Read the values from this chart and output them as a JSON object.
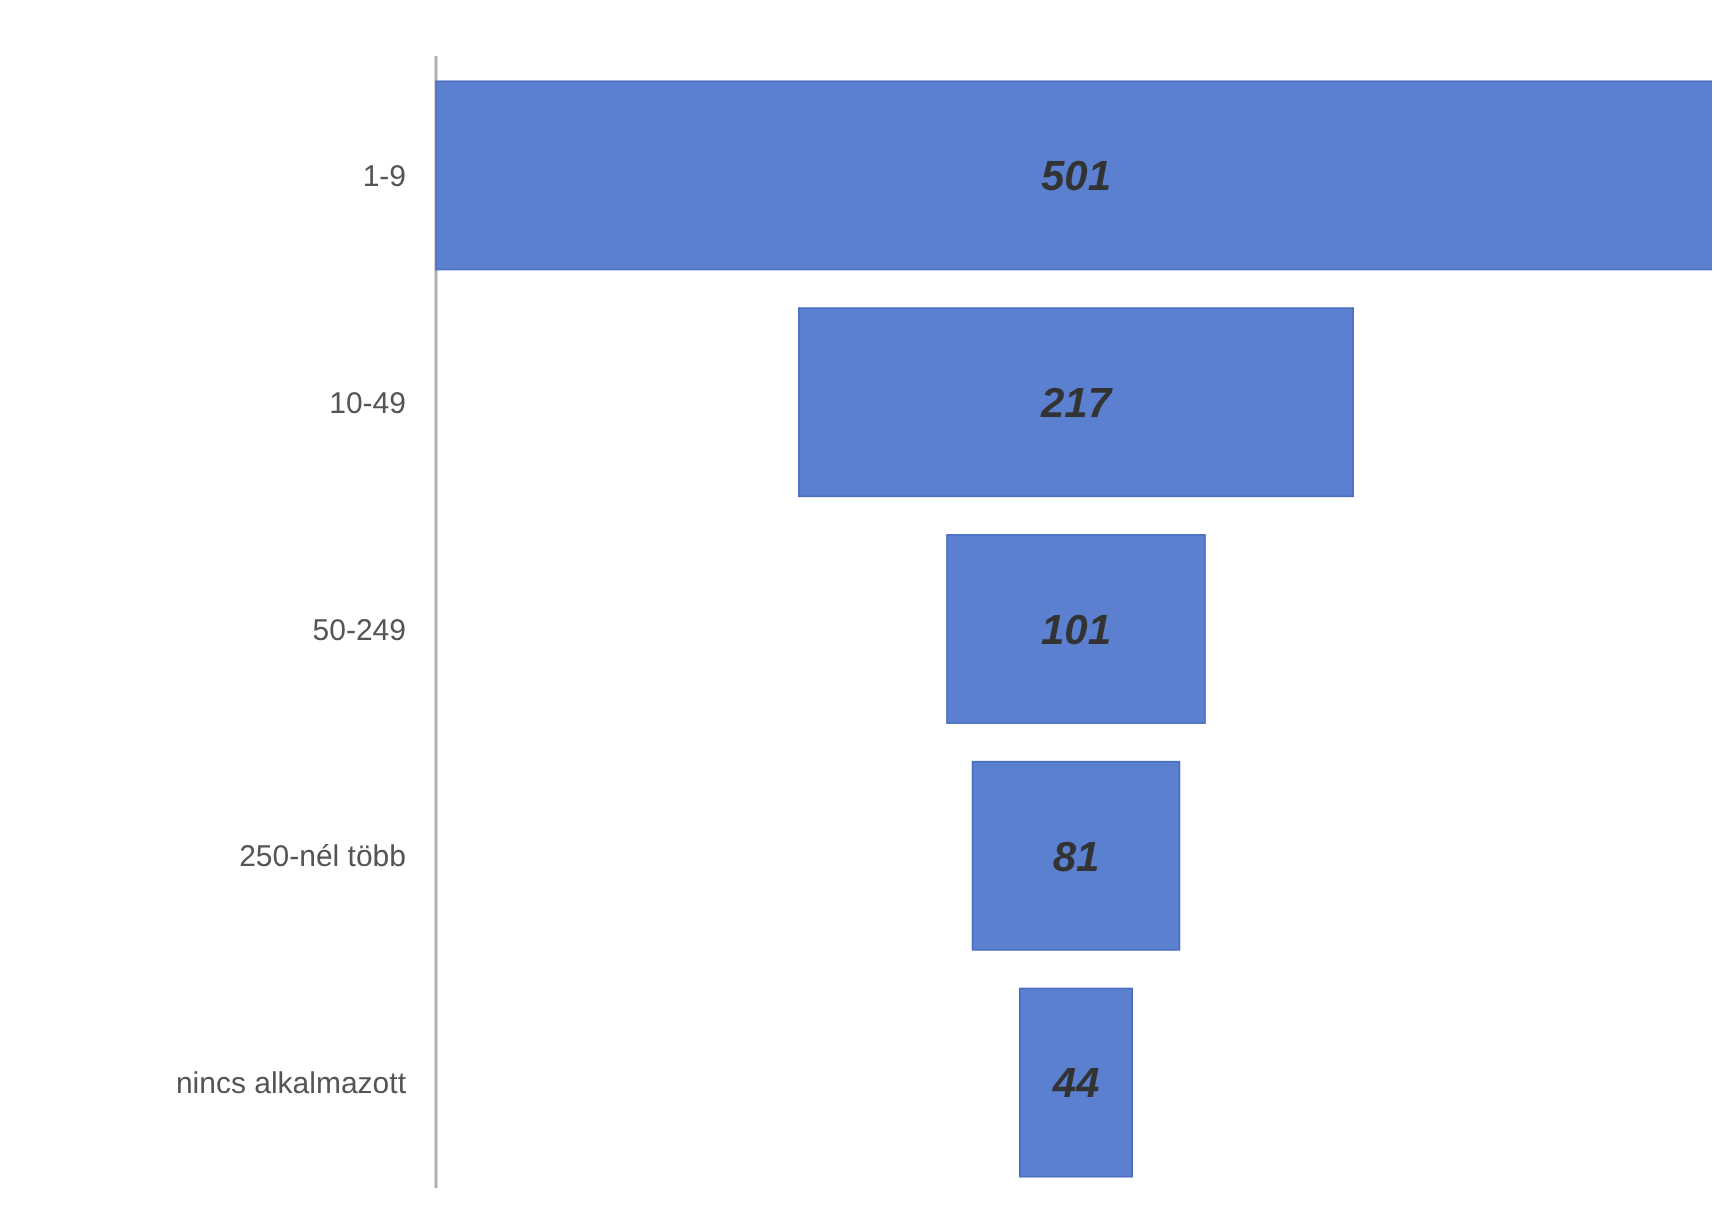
{
  "chart_data": {
    "type": "other",
    "categories": [
      "1-9",
      "10-49",
      "50-249",
      "250-nél több",
      "nincs alkalmazott"
    ],
    "values": [
      501,
      217,
      101,
      81,
      44
    ],
    "color": "#5b80d0",
    "data_labels": true
  }
}
